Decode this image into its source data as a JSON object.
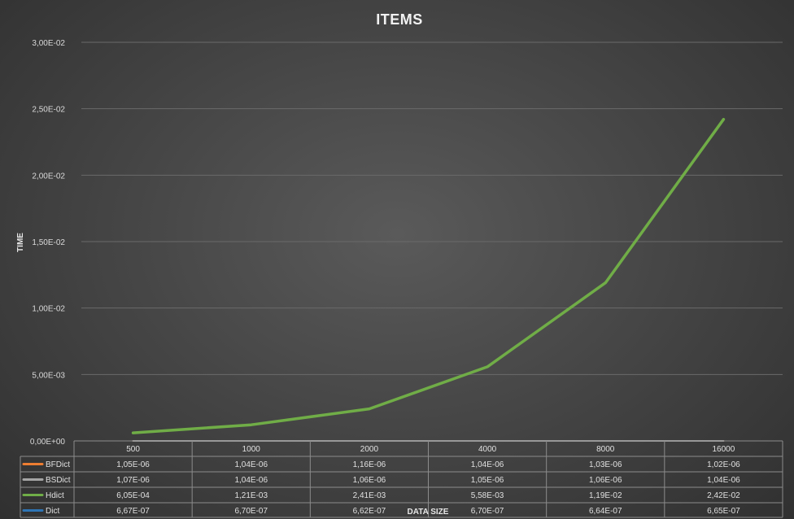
{
  "chart_data": {
    "type": "line",
    "title": "ITEMS",
    "xlabel": "DATA SIZE",
    "ylabel": "TIME",
    "ylim": [
      0,
      0.03
    ],
    "y_ticks": [
      0,
      0.005,
      0.01,
      0.015,
      0.02,
      0.025,
      0.03
    ],
    "y_tick_labels": [
      "0,00E+00",
      "5,00E-03",
      "1,00E-02",
      "1,50E-02",
      "2,00E-02",
      "2,50E-02",
      "3,00E-02"
    ],
    "grid": true,
    "legend": "data-table",
    "categories": [
      "500",
      "1000",
      "2000",
      "4000",
      "8000",
      "16000"
    ],
    "series": [
      {
        "name": "BFDict",
        "color": "#ed7d31",
        "values": [
          1.05e-06,
          1.04e-06,
          1.16e-06,
          1.04e-06,
          1.03e-06,
          1.02e-06
        ],
        "labels": [
          "1,05E-06",
          "1,04E-06",
          "1,16E-06",
          "1,04E-06",
          "1,03E-06",
          "1,02E-06"
        ]
      },
      {
        "name": "BSDict",
        "color": "#a5a5a5",
        "values": [
          1.07e-06,
          1.04e-06,
          1.06e-06,
          1.05e-06,
          1.06e-06,
          1.04e-06
        ],
        "labels": [
          "1,07E-06",
          "1,04E-06",
          "1,06E-06",
          "1,05E-06",
          "1,06E-06",
          "1,04E-06"
        ]
      },
      {
        "name": "Hdict",
        "color": "#70ad47",
        "values": [
          0.000605,
          0.00121,
          0.00241,
          0.00558,
          0.0119,
          0.0242
        ],
        "labels": [
          "6,05E-04",
          "1,21E-03",
          "2,41E-03",
          "5,58E-03",
          "1,19E-02",
          "2,42E-02"
        ]
      },
      {
        "name": "Dict",
        "color": "#2e75b6",
        "values": [
          6.67e-07,
          6.7e-07,
          6.62e-07,
          6.7e-07,
          6.64e-07,
          6.65e-07
        ],
        "labels": [
          "6,67E-07",
          "6,70E-07",
          "6,62E-07",
          "6,70E-07",
          "6,64E-07",
          "6,65E-07"
        ]
      }
    ]
  }
}
